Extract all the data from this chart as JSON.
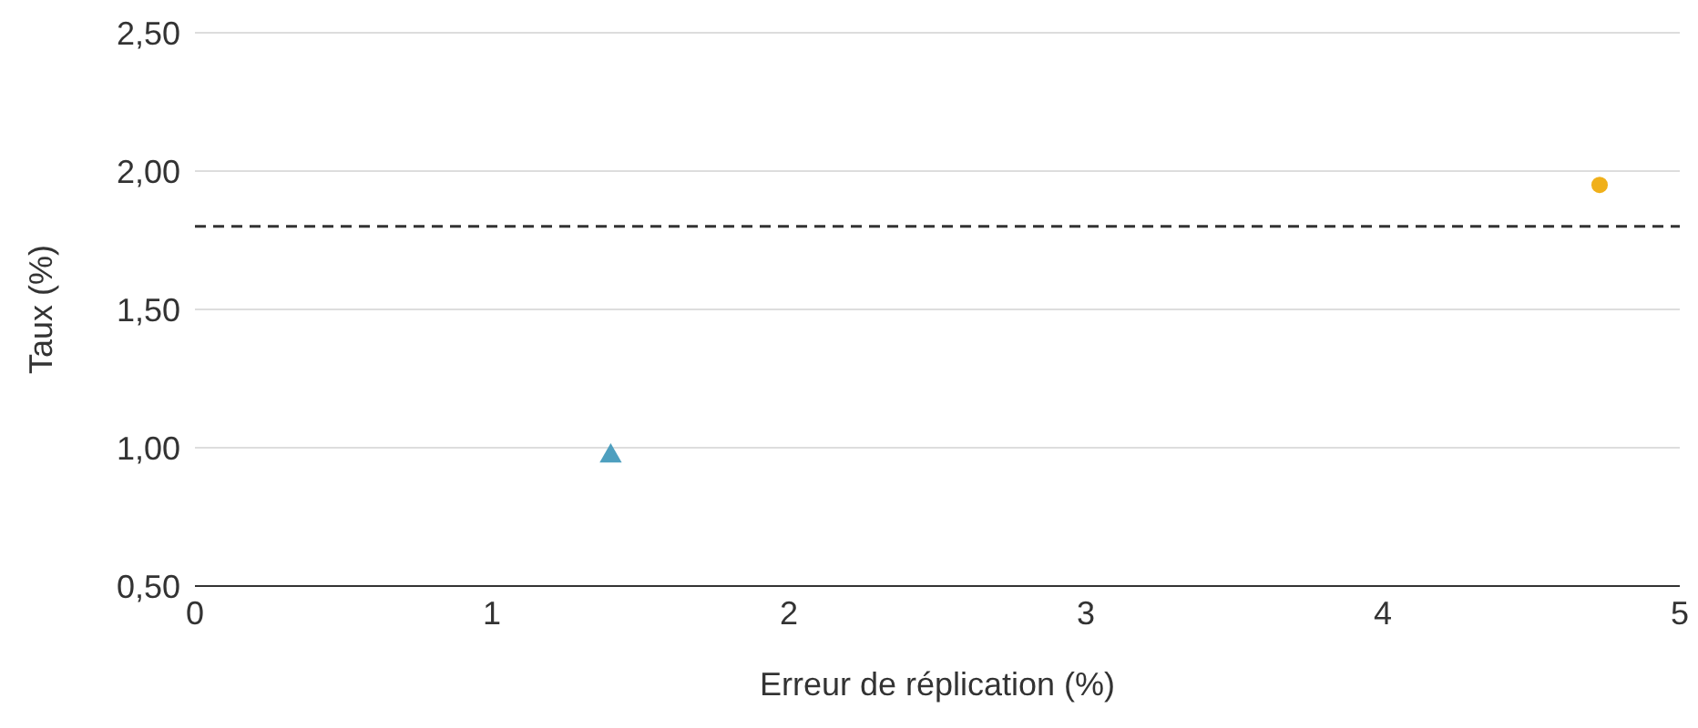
{
  "chart_data": {
    "type": "scatter",
    "xlabel": "Erreur de réplication (%)",
    "ylabel": "Taux (%)",
    "xlim": [
      0,
      5
    ],
    "xticks": [
      0,
      1,
      2,
      3,
      4,
      5
    ],
    "ylim": [
      0.5,
      2.5
    ],
    "yticks": [
      {
        "value": 0.5,
        "label": "0,50"
      },
      {
        "value": 1,
        "label": "1,00"
      },
      {
        "value": 1.5,
        "label": "1,50"
      },
      {
        "value": 2,
        "label": "2,00"
      },
      {
        "value": 2.5,
        "label": "2,50"
      }
    ],
    "grid": "y",
    "legend": false,
    "ref_lines": [
      {
        "axis": "y",
        "value": 1.8,
        "color": "#333333",
        "line_style": "dashed"
      }
    ],
    "series": [
      {
        "color": "#4e9fbf",
        "marker": "triangle",
        "x": [
          1.4
        ],
        "values": [
          0.97
        ]
      },
      {
        "color": "#f0b01a",
        "marker": "circle",
        "x": [
          4.73
        ],
        "values": [
          1.95
        ]
      }
    ]
  }
}
